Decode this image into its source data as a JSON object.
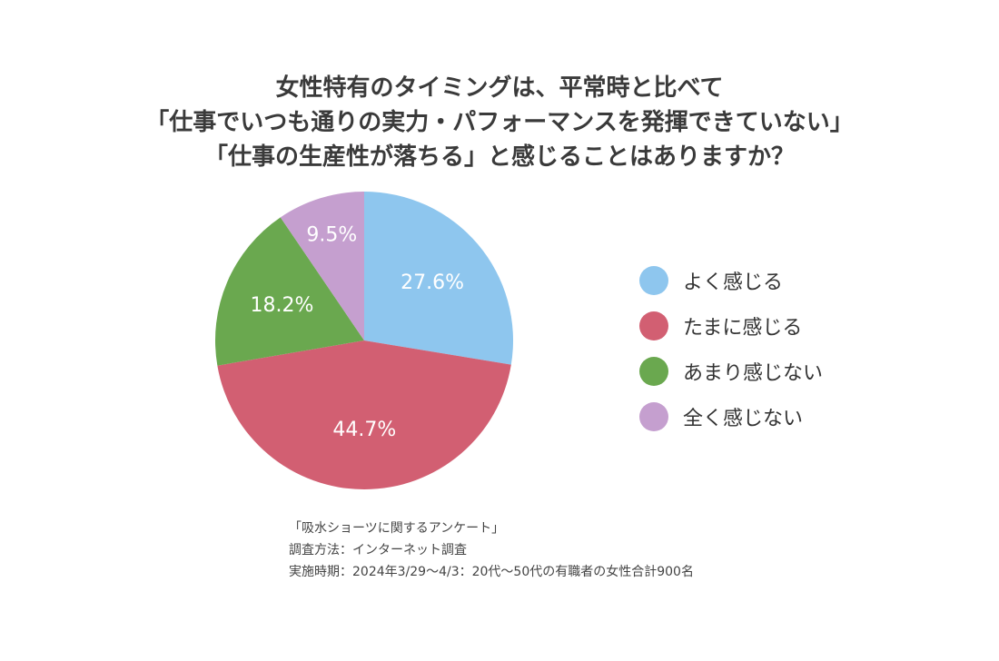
{
  "chart_data": {
    "type": "pie",
    "title_lines": [
      "女性特有のタイミングは、平常時と比べて",
      "「仕事でいつも通りの実力・パフォーマンスを発揮できていない」",
      "「仕事の生産性が落ちる」と感じることはありますか？"
    ],
    "slices": [
      {
        "label": "よく感じる",
        "value": 27.6,
        "display": "27.6%",
        "color": "#8ec6ee"
      },
      {
        "label": "たまに感じる",
        "value": 44.7,
        "display": "44.7%",
        "color": "#d25f72"
      },
      {
        "label": "あまり感じない",
        "value": 18.2,
        "display": "18.2%",
        "color": "#6aa84f"
      },
      {
        "label": "全く感じない",
        "value": 9.5,
        "display": "9.5%",
        "color": "#c59fcf"
      }
    ],
    "legend_position": "right",
    "start": "12 o'clock",
    "direction": "clockwise"
  },
  "source_notes": [
    "「吸水ショーツに関するアンケート」",
    "調査方法：インターネット調査",
    "実施時期：2024年3/29〜4/3：20代〜50代の有職者の女性合計900名"
  ]
}
